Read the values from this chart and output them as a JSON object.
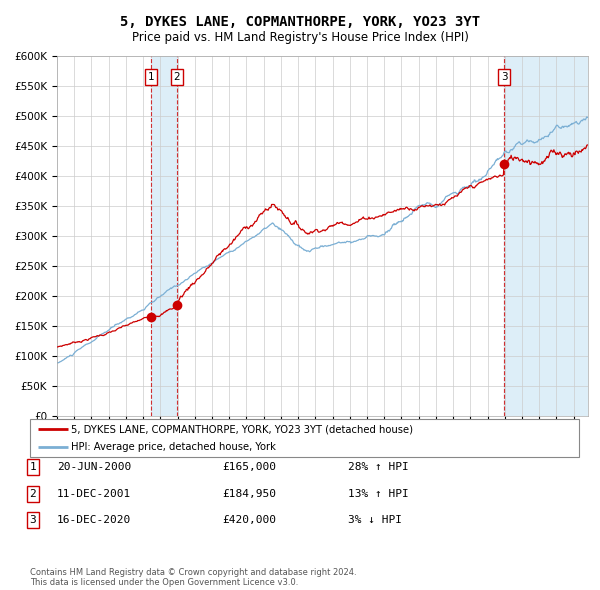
{
  "title": "5, DYKES LANE, COPMANTHORPE, YORK, YO23 3YT",
  "subtitle": "Price paid vs. HM Land Registry's House Price Index (HPI)",
  "ylim": [
    0,
    600000
  ],
  "yticks": [
    0,
    50000,
    100000,
    150000,
    200000,
    250000,
    300000,
    350000,
    400000,
    450000,
    500000,
    550000,
    600000
  ],
  "xlim_start": 1995.0,
  "xlim_end": 2025.83,
  "hpi_color": "#7bafd4",
  "price_color": "#cc0000",
  "dot_color": "#cc0000",
  "bg_color": "#ffffff",
  "grid_color": "#cccccc",
  "sale1_x": 2000.47,
  "sale1_y": 165000,
  "sale1_label": "1",
  "sale2_x": 2001.95,
  "sale2_y": 184950,
  "sale2_label": "2",
  "sale3_x": 2020.96,
  "sale3_y": 420000,
  "sale3_label": "3",
  "shade_color": "#ddeef8",
  "legend_entries": [
    "5, DYKES LANE, COPMANTHORPE, YORK, YO23 3YT (detached house)",
    "HPI: Average price, detached house, York"
  ],
  "table_rows": [
    {
      "num": "1",
      "date": "20-JUN-2000",
      "price": "£165,000",
      "hpi": "28% ↑ HPI"
    },
    {
      "num": "2",
      "date": "11-DEC-2001",
      "price": "£184,950",
      "hpi": "13% ↑ HPI"
    },
    {
      "num": "3",
      "date": "16-DEC-2020",
      "price": "£420,000",
      "hpi": "3% ↓ HPI"
    }
  ],
  "footnote": "Contains HM Land Registry data © Crown copyright and database right 2024.\nThis data is licensed under the Open Government Licence v3.0."
}
